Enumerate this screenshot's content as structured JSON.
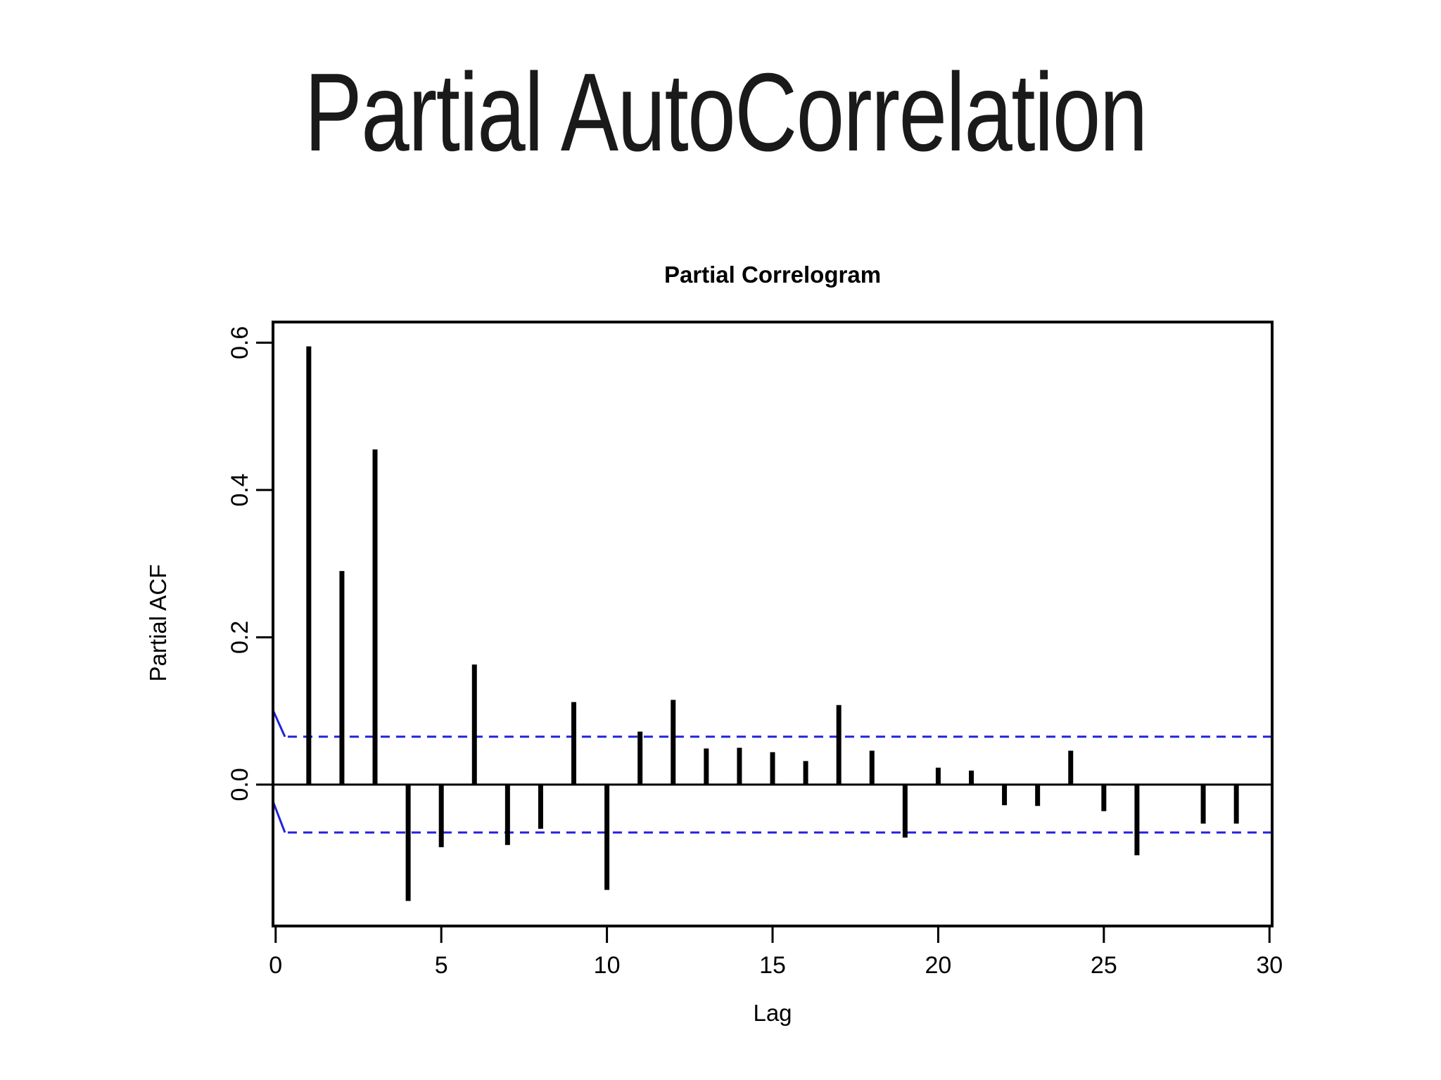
{
  "slide": {
    "title": "Partial AutoCorrelation"
  },
  "chart_data": {
    "type": "bar",
    "title": "Partial Correlogram",
    "xlabel": "Lag",
    "ylabel": "Partial ACF",
    "x": [
      1,
      2,
      3,
      4,
      5,
      6,
      7,
      8,
      9,
      10,
      11,
      12,
      13,
      14,
      15,
      16,
      17,
      18,
      19,
      20,
      21,
      22,
      23,
      24,
      25,
      26,
      27,
      28,
      29,
      30
    ],
    "values": [
      0.595,
      0.29,
      0.455,
      -0.158,
      -0.085,
      0.163,
      -0.082,
      -0.06,
      0.112,
      -0.143,
      0.072,
      0.115,
      0.049,
      0.05,
      0.044,
      0.032,
      0.108,
      0.046,
      -0.072,
      0.023,
      0.019,
      -0.028,
      -0.029,
      0.046,
      -0.036,
      -0.096,
      0,
      -0.053,
      -0.053,
      0
    ],
    "xlim": [
      -0.08,
      30.08
    ],
    "ylim": [
      -0.192,
      0.628
    ],
    "xticks": [
      0,
      5,
      10,
      15,
      20,
      25,
      30
    ],
    "xtick_labels": [
      "0",
      "5",
      "10",
      "15",
      "20",
      "25",
      "30"
    ],
    "yticks": [
      0.0,
      0.2,
      0.4,
      0.6
    ],
    "ytick_labels": [
      "0.0",
      "0.2",
      "0.4",
      "0.6"
    ],
    "grid": false,
    "legend": "none",
    "conf_upper": 0.065,
    "conf_lower": -0.065,
    "conf_flare": {
      "upper_start_value": 0.101,
      "lower_start_value": -0.023,
      "end_lag": 0.28
    },
    "bar_color": "#000000",
    "conf_color": "#2222dd",
    "axis_color": "#000000"
  }
}
